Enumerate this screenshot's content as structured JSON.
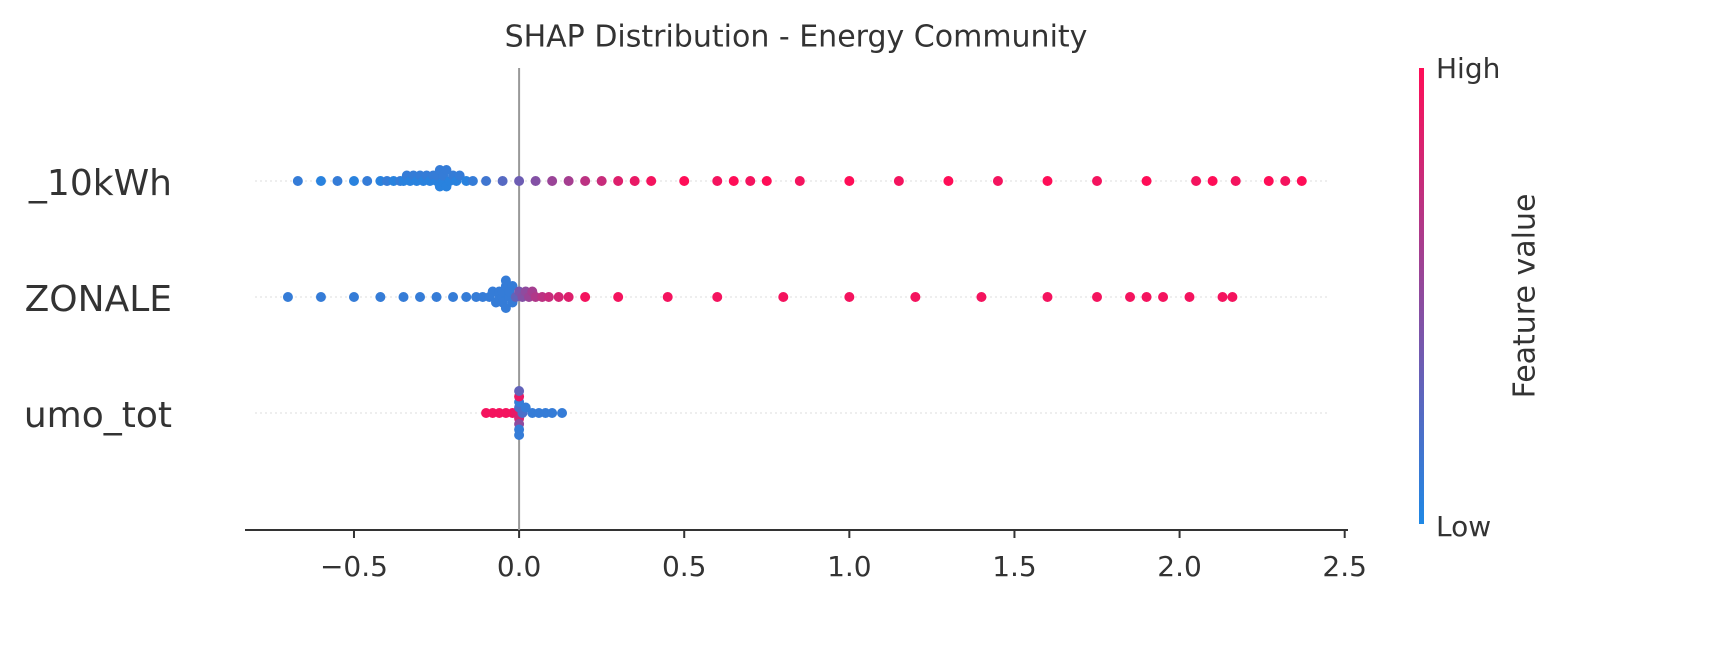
{
  "chart_data": {
    "type": "beeswarm",
    "title": "SHAP Distribution - Energy Community",
    "xlim": [
      -0.83,
      2.51
    ],
    "xticks": [
      {
        "value": -0.5,
        "label": "−0.5"
      },
      {
        "value": 0,
        "label": "0.0"
      },
      0.5,
      {
        "value": 1,
        "label": "1.0"
      },
      1.5,
      {
        "value": 2,
        "label": "2.0"
      },
      2.5
    ],
    "colorbar": {
      "label": "Feature value",
      "high": "High",
      "low": "Low",
      "colors": [
        "#1E88E5",
        "#FF0D57"
      ]
    },
    "features": [
      {
        "name": "_10kWh",
        "shap_values": [
          -0.67,
          -0.6,
          -0.55,
          -0.5,
          -0.46,
          -0.42,
          -0.4,
          -0.38,
          -0.36,
          -0.35,
          -0.34,
          -0.33,
          -0.32,
          -0.31,
          -0.3,
          -0.29,
          -0.28,
          -0.27,
          -0.26,
          -0.25,
          -0.25,
          -0.24,
          -0.24,
          -0.23,
          -0.23,
          -0.22,
          -0.22,
          -0.21,
          -0.2,
          -0.19,
          -0.18,
          -0.16,
          -0.14,
          -0.1,
          -0.05,
          0,
          0.05,
          0.1,
          0.15,
          0.2,
          0.25,
          0.3,
          0.35,
          0.4,
          0.5,
          0.6,
          0.65,
          0.7,
          0.75,
          0.85,
          1.0,
          1.15,
          1.3,
          1.45,
          1.6,
          1.75,
          1.9,
          2.05,
          2.1,
          2.17,
          2.27,
          2.32,
          2.37
        ],
        "feature_values": [
          0.1,
          0.05,
          0.1,
          0.05,
          0.1,
          0.05,
          0.1,
          0.05,
          0.1,
          0.05,
          0.1,
          0.05,
          0.1,
          0.05,
          0.1,
          0.05,
          0.1,
          0.05,
          0.1,
          0.05,
          0.1,
          0.05,
          0.1,
          0.05,
          0.1,
          0.05,
          0.1,
          0.05,
          0.1,
          0.05,
          0.1,
          0.05,
          0.1,
          0.15,
          0.25,
          0.35,
          0.45,
          0.55,
          0.6,
          0.7,
          0.75,
          0.85,
          0.9,
          0.95,
          1,
          0.95,
          1,
          0.95,
          1,
          0.95,
          1,
          0.95,
          1,
          0.95,
          1,
          0.95,
          1,
          0.95,
          1,
          0.95,
          1,
          0.95,
          1
        ]
      },
      {
        "name": "ZONALE",
        "shap_values": [
          -0.7,
          -0.6,
          -0.5,
          -0.42,
          -0.35,
          -0.3,
          -0.25,
          -0.2,
          -0.16,
          -0.13,
          -0.11,
          -0.09,
          -0.08,
          -0.07,
          -0.06,
          -0.06,
          -0.05,
          -0.05,
          -0.05,
          -0.04,
          -0.04,
          -0.04,
          -0.03,
          -0.03,
          -0.02,
          -0.02,
          -0.01,
          0,
          0.01,
          0.02,
          0.03,
          0.04,
          0.05,
          0.07,
          0.09,
          0.12,
          0.15,
          0.2,
          0.3,
          0.45,
          0.6,
          0.8,
          1.0,
          1.2,
          1.4,
          1.6,
          1.75,
          1.85,
          1.9,
          1.95,
          2.03,
          2.13,
          2.16
        ],
        "feature_values": [
          0.1,
          0.1,
          0.1,
          0.1,
          0.1,
          0.1,
          0.1,
          0.1,
          0.1,
          0.1,
          0.1,
          0.1,
          0.1,
          0.1,
          0.1,
          0.1,
          0.1,
          0.1,
          0.1,
          0.1,
          0.1,
          0.1,
          0.1,
          0.1,
          0.1,
          0.1,
          0.3,
          0.4,
          0.45,
          0.5,
          0.55,
          0.6,
          0.65,
          0.7,
          0.75,
          0.8,
          0.85,
          0.95,
          0.95,
          0.95,
          0.95,
          0.95,
          0.95,
          0.95,
          0.95,
          0.95,
          0.95,
          0.95,
          0.95,
          0.95,
          0.95,
          0.95,
          0.95
        ]
      },
      {
        "name": "umo_tot",
        "shap_values": [
          -0.1,
          -0.08,
          -0.06,
          -0.04,
          -0.02,
          -0.01,
          0,
          0,
          0,
          0,
          0,
          0,
          0,
          0,
          0.01,
          0.02,
          0.04,
          0.06,
          0.08,
          0.1,
          0.13
        ],
        "feature_values": [
          0.95,
          0.95,
          0.95,
          0.95,
          0.95,
          0.9,
          0.2,
          0.8,
          0.1,
          0.5,
          0.9,
          0.1,
          0.3,
          0.1,
          0.2,
          0.1,
          0.1,
          0.1,
          0.1,
          0.1,
          0.1
        ]
      }
    ]
  }
}
